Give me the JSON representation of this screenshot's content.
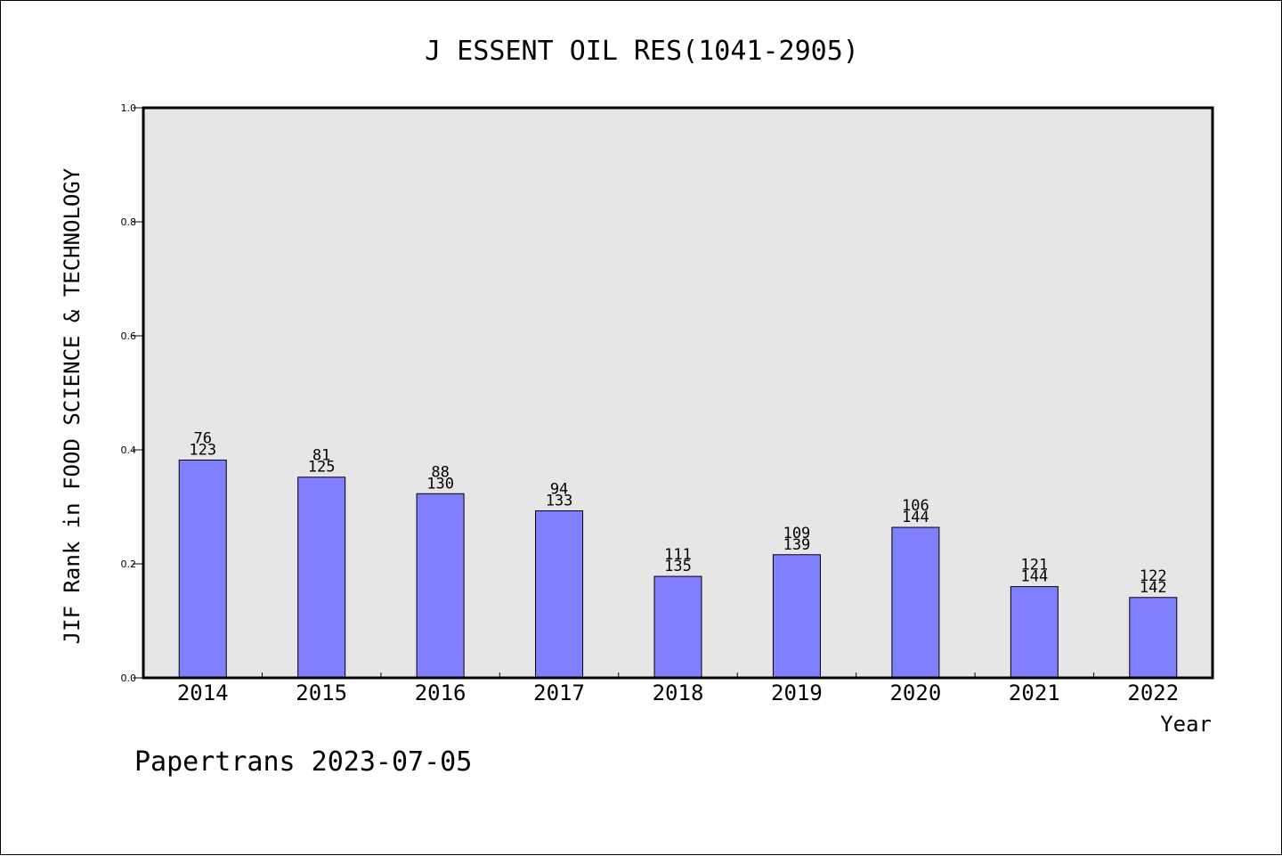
{
  "chart_data": {
    "type": "bar",
    "title": "J ESSENT OIL RES(1041-2905)",
    "xlabel": "Year",
    "ylabel": "JIF Rank in FOOD SCIENCE & TECHNOLOGY",
    "ylim": [
      0,
      1.0
    ],
    "yticks": [
      "0.0",
      "0.2",
      "0.4",
      "0.6",
      "0.8",
      "1.0"
    ],
    "categories": [
      "2014",
      "2015",
      "2016",
      "2017",
      "2018",
      "2019",
      "2020",
      "2021",
      "2022"
    ],
    "values": [
      0.382,
      0.352,
      0.323,
      0.293,
      0.178,
      0.216,
      0.264,
      0.16,
      0.141
    ],
    "rank": [
      "76",
      "81",
      "88",
      "94",
      "111",
      "109",
      "106",
      "121",
      "122"
    ],
    "total": [
      "123",
      "125",
      "130",
      "133",
      "135",
      "139",
      "144",
      "144",
      "142"
    ],
    "bar_color": "#8080ff",
    "plot_background": "#e6e6e6",
    "grid": false
  },
  "footer": "Papertrans 2023-07-05"
}
